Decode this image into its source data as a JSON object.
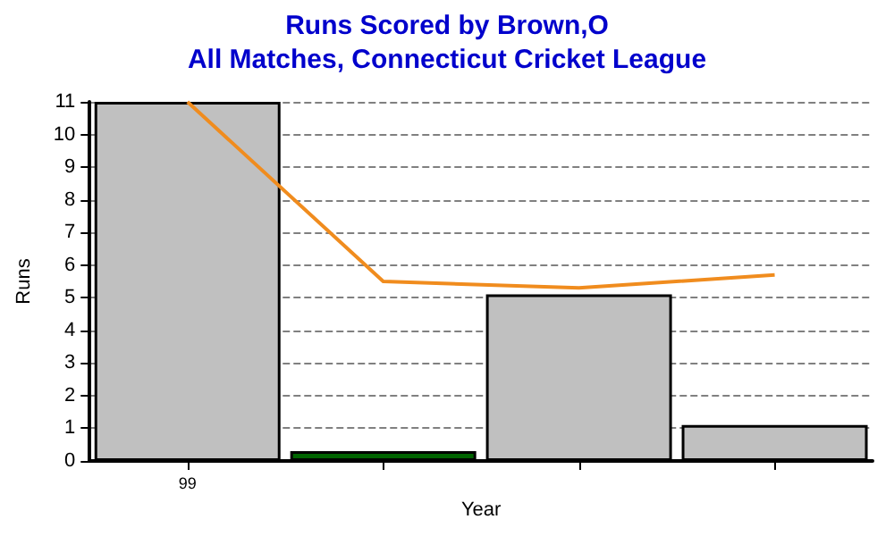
{
  "chart_data": {
    "type": "bar",
    "title": "Runs Scored by Brown,O",
    "subtitle": "All Matches, Connecticut Cricket League",
    "xlabel": "Year",
    "ylabel": "Runs",
    "categories": [
      "99",
      null,
      null,
      null
    ],
    "series": [
      {
        "colors": [
          "#c0c0c0",
          "#006400",
          "#c0c0c0",
          "#c0c0c0"
        ],
        "values": [
          11,
          0.3,
          5.1,
          1.1
        ]
      },
      {
        "type": "line",
        "color": "#f08c1e",
        "values": [
          11,
          5.5,
          5.3,
          5.7
        ]
      }
    ],
    "ylim": [
      0,
      11
    ],
    "yticks": [
      0,
      1,
      2,
      3,
      4,
      5,
      6,
      7,
      8,
      9,
      10,
      11
    ],
    "grid": "y",
    "marker": "none",
    "line_style": "solid"
  }
}
